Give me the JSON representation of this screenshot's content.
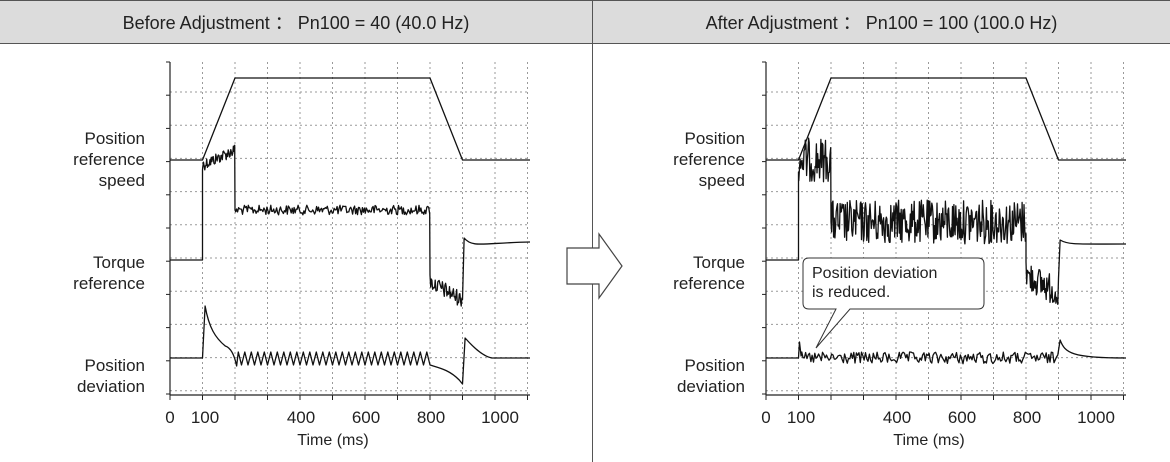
{
  "panels": [
    {
      "title": "Before Adjustment ： Pn100 = 40 (40.0 Hz)",
      "signal_labels": [
        "Position\nreference\nspeed",
        "Torque\nreference",
        "Position\ndeviation"
      ],
      "xlabel": "Time (ms)",
      "x_tick_labels": [
        "0",
        "100",
        "400",
        "600",
        "800",
        "1000"
      ]
    },
    {
      "title": "After Adjustment ： Pn100 = 100 (100.0 Hz)",
      "signal_labels": [
        "Position\nreference\nspeed",
        "Torque\nreference",
        "Position\ndeviation"
      ],
      "xlabel": "Time (ms)",
      "x_tick_labels": [
        "0",
        "100",
        "400",
        "600",
        "800",
        "1000"
      ],
      "callout": "Position deviation\nis reduced."
    }
  ],
  "arrow_icon": "right-arrow-icon",
  "chart_data": [
    {
      "type": "line",
      "title": "Before Adjustment ： Pn100 = 40 (40.0 Hz)",
      "xlabel": "Time (ms)",
      "xlim": [
        0,
        1100
      ],
      "x_ticks": [
        0,
        100,
        400,
        600,
        800,
        1000
      ],
      "grid": true,
      "series": [
        {
          "name": "Position reference speed",
          "x": [
            0,
            100,
            200,
            800,
            900,
            1100
          ],
          "values": [
            0,
            0,
            1,
            1,
            0,
            0
          ]
        },
        {
          "name": "Torque reference",
          "x": [
            0,
            100,
            100,
            200,
            200,
            800,
            800,
            900,
            900,
            1100
          ],
          "values": [
            0,
            0,
            0.85,
            0.95,
            0.45,
            0.45,
            -0.3,
            -0.45,
            0.15,
            0.15
          ]
        },
        {
          "name": "Position deviation",
          "x": [
            0,
            100,
            110,
            200,
            300,
            800,
            900,
            920,
            1100
          ],
          "values": [
            0,
            0,
            1,
            0.2,
            0,
            0,
            -0.3,
            0.15,
            0
          ]
        }
      ]
    },
    {
      "type": "line",
      "title": "After Adjustment ： Pn100 = 100 (100.0 Hz)",
      "xlabel": "Time (ms)",
      "xlim": [
        0,
        1100
      ],
      "x_ticks": [
        0,
        100,
        400,
        600,
        800,
        1000
      ],
      "grid": true,
      "series": [
        {
          "name": "Position reference speed",
          "x": [
            0,
            100,
            200,
            800,
            900,
            1100
          ],
          "values": [
            0,
            0,
            1,
            1,
            0,
            0
          ]
        },
        {
          "name": "Torque reference",
          "x": [
            0,
            100,
            100,
            200,
            200,
            800,
            800,
            900,
            900,
            1100
          ],
          "values": [
            0,
            0,
            0.85,
            0.95,
            0.45,
            0.45,
            -0.3,
            -0.45,
            0.15,
            0.15
          ]
        },
        {
          "name": "Position deviation",
          "x": [
            0,
            100,
            110,
            200,
            800,
            900,
            920,
            1100
          ],
          "values": [
            0,
            0,
            0.25,
            0,
            0,
            0,
            0.15,
            0
          ]
        }
      ]
    }
  ]
}
